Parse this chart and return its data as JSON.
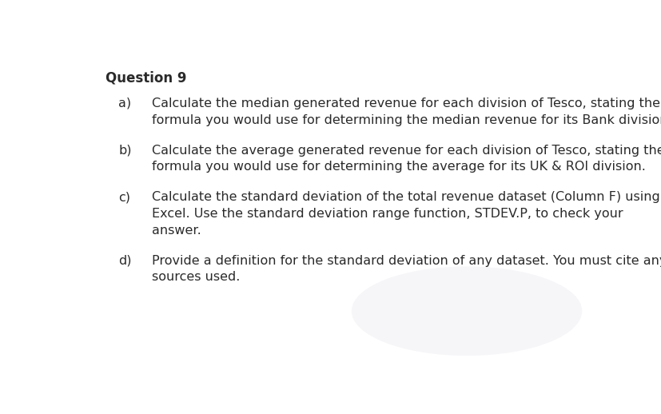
{
  "title": "Question 9",
  "bg_color": "#ffffff",
  "text_color": "#2a2a2a",
  "items": [
    {
      "label": "a)",
      "lines": [
        "Calculate the median generated revenue for each division of Tesco, stating the",
        "formula you would use for determining the median revenue for its Bank division."
      ]
    },
    {
      "label": "b)",
      "lines": [
        "Calculate the average generated revenue for each division of Tesco, stating the",
        "formula you would use for determining the average for its UK & ROI division."
      ]
    },
    {
      "label": "c)",
      "lines": [
        "Calculate the standard deviation of the total revenue dataset (Column F) using",
        "Excel. Use the standard deviation range function, STDEV.P, to check your",
        "answer."
      ]
    },
    {
      "label": "d)",
      "lines": [
        "Provide a definition for the standard deviation of any dataset. You must cite any",
        "sources used."
      ]
    }
  ],
  "title_fontsize": 12,
  "body_fontsize": 11.5,
  "label_indent": 0.07,
  "text_indent": 0.135,
  "figsize": [
    8.27,
    5.18
  ],
  "dpi": 100
}
